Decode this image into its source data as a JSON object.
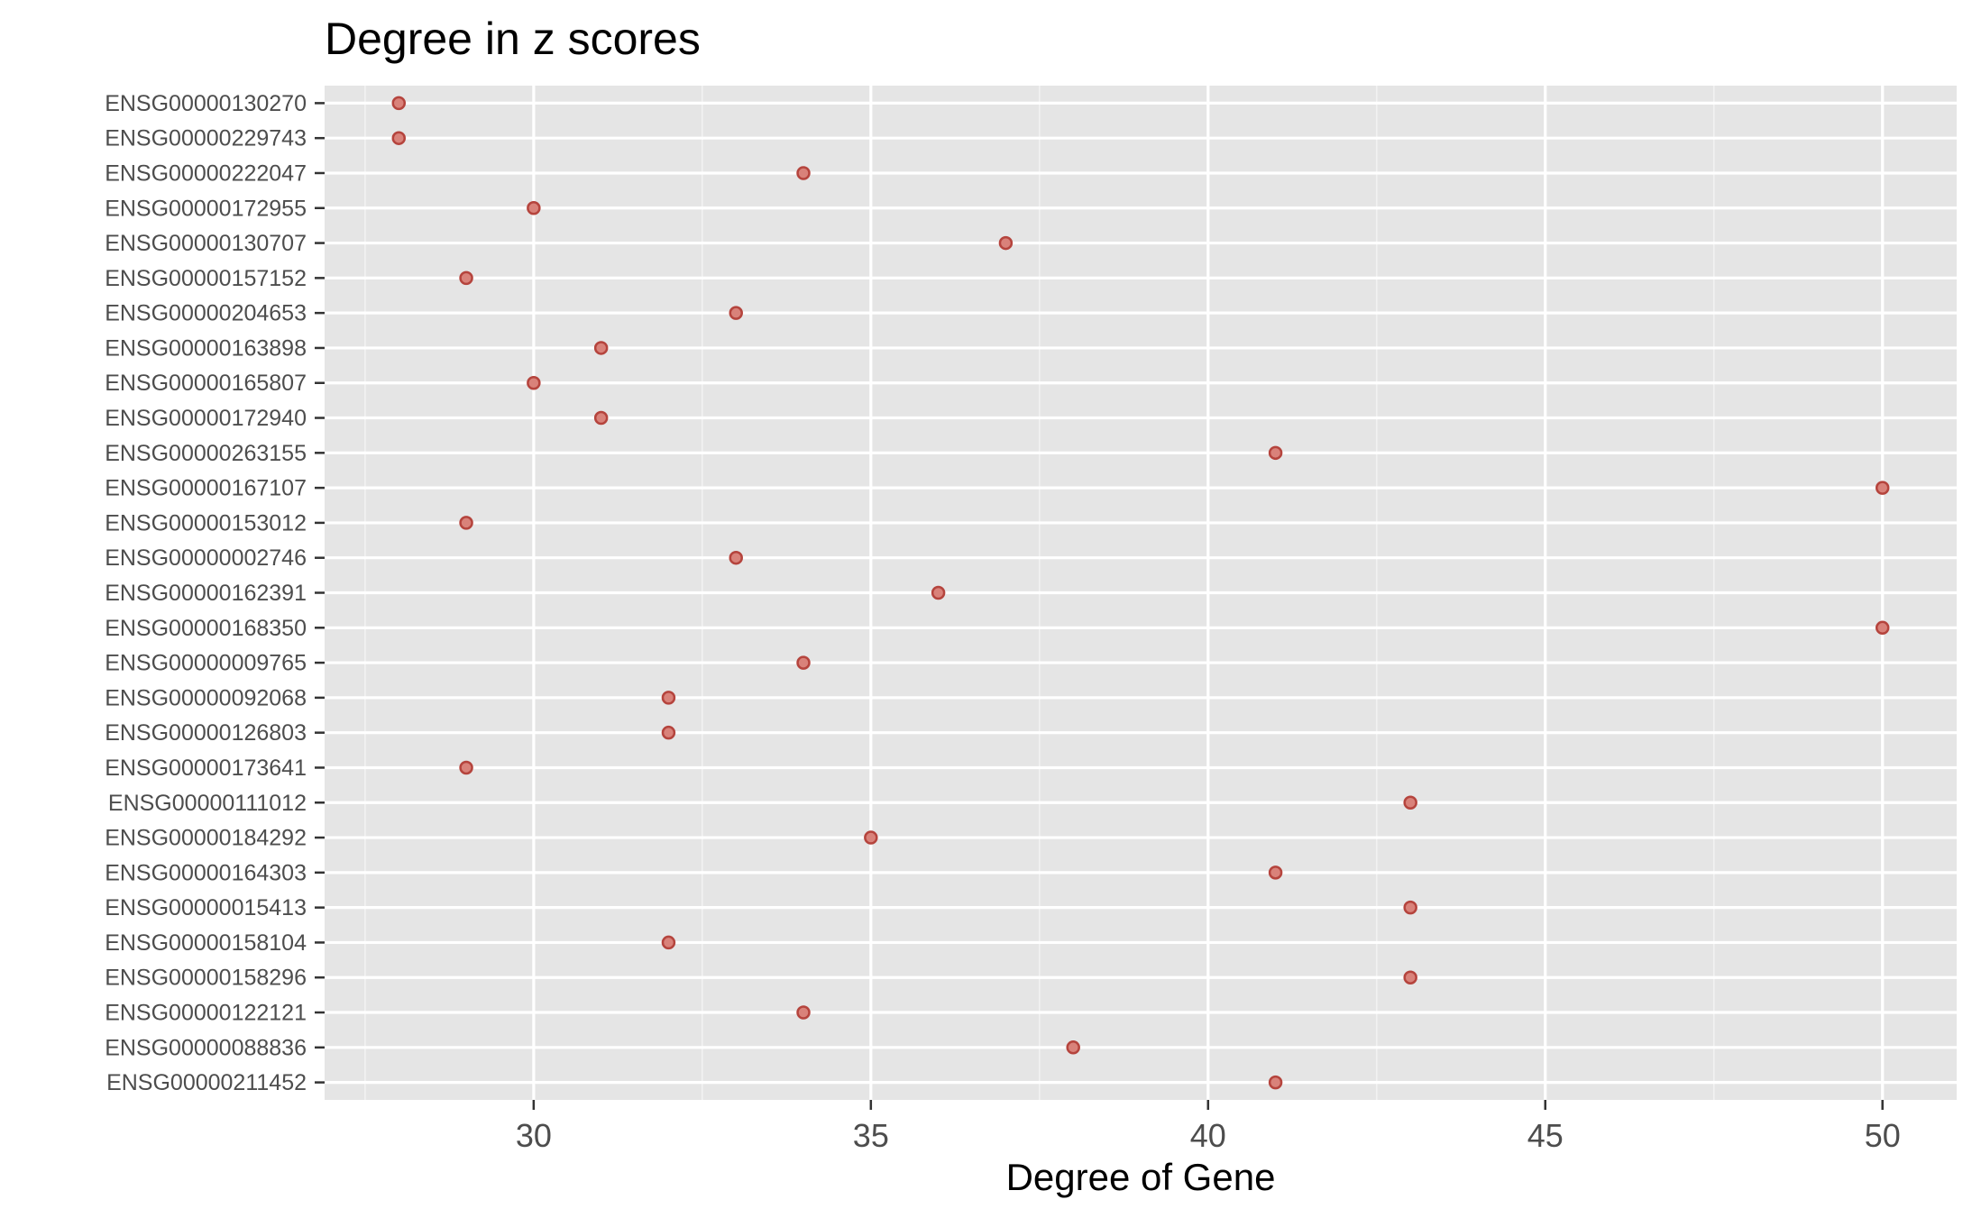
{
  "chart_data": {
    "type": "scatter",
    "title": "Degree in z scores",
    "xlabel": "Degree of Gene",
    "ylabel": "",
    "xlim": [
      26.9,
      51.1
    ],
    "xticks": [
      30,
      35,
      40,
      45,
      50
    ],
    "grid": true,
    "legend": "none",
    "categories": [
      "ENSG00000130270",
      "ENSG00000229743",
      "ENSG00000222047",
      "ENSG00000172955",
      "ENSG00000130707",
      "ENSG00000157152",
      "ENSG00000204653",
      "ENSG00000163898",
      "ENSG00000165807",
      "ENSG00000172940",
      "ENSG00000263155",
      "ENSG00000167107",
      "ENSG00000153012",
      "ENSG00000002746",
      "ENSG00000162391",
      "ENSG00000168350",
      "ENSG00000009765",
      "ENSG00000092068",
      "ENSG00000126803",
      "ENSG00000173641",
      "ENSG00000111012",
      "ENSG00000184292",
      "ENSG00000164303",
      "ENSG00000015413",
      "ENSG00000158104",
      "ENSG00000158296",
      "ENSG00000122121",
      "ENSG00000088836",
      "ENSG00000211452"
    ],
    "values": [
      28,
      28,
      34,
      30,
      37,
      29,
      33,
      31,
      30,
      31,
      41,
      50,
      29,
      33,
      36,
      50,
      34,
      32,
      32,
      29,
      43,
      35,
      41,
      43,
      32,
      43,
      34,
      38,
      41
    ],
    "colors": {
      "panel": "#e5e5e5",
      "grid_major": "#ffffff",
      "grid_minor": "#f2f2f2",
      "point_fill": "#d9827a",
      "point_stroke": "#b5443d",
      "tick": "#333333"
    }
  }
}
